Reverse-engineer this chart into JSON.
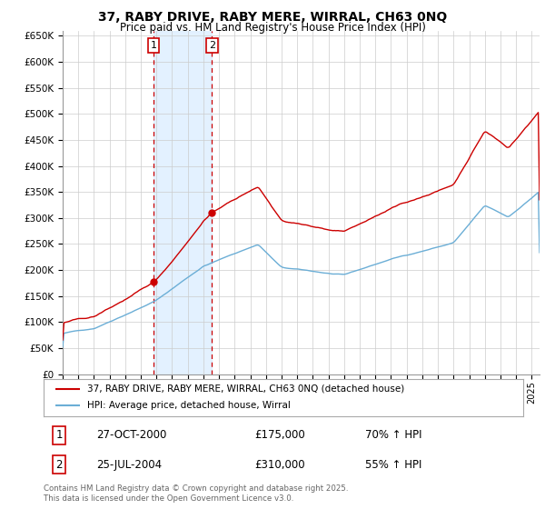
{
  "title": "37, RABY DRIVE, RABY MERE, WIRRAL, CH63 0NQ",
  "subtitle": "Price paid vs. HM Land Registry's House Price Index (HPI)",
  "background_color": "#ffffff",
  "grid_color": "#cccccc",
  "legend_line1": "37, RABY DRIVE, RABY MERE, WIRRAL, CH63 0NQ (detached house)",
  "legend_line2": "HPI: Average price, detached house, Wirral",
  "transaction1_label": "1",
  "transaction1_date": "27-OCT-2000",
  "transaction1_price": "£175,000",
  "transaction1_hpi": "70% ↑ HPI",
  "transaction2_label": "2",
  "transaction2_date": "25-JUL-2004",
  "transaction2_price": "£310,000",
  "transaction2_hpi": "55% ↑ HPI",
  "footer": "Contains HM Land Registry data © Crown copyright and database right 2025.\nThis data is licensed under the Open Government Licence v3.0.",
  "hpi_color": "#6baed6",
  "price_color": "#cc0000",
  "vline_color": "#cc0000",
  "shade_color": "#ddeeff",
  "ylim_min": 0,
  "ylim_max": 660000,
  "ytick_step": 50000,
  "x_start_year": 1995,
  "x_end_year": 2025,
  "transaction1_year": 2000.82,
  "transaction2_year": 2004.55
}
